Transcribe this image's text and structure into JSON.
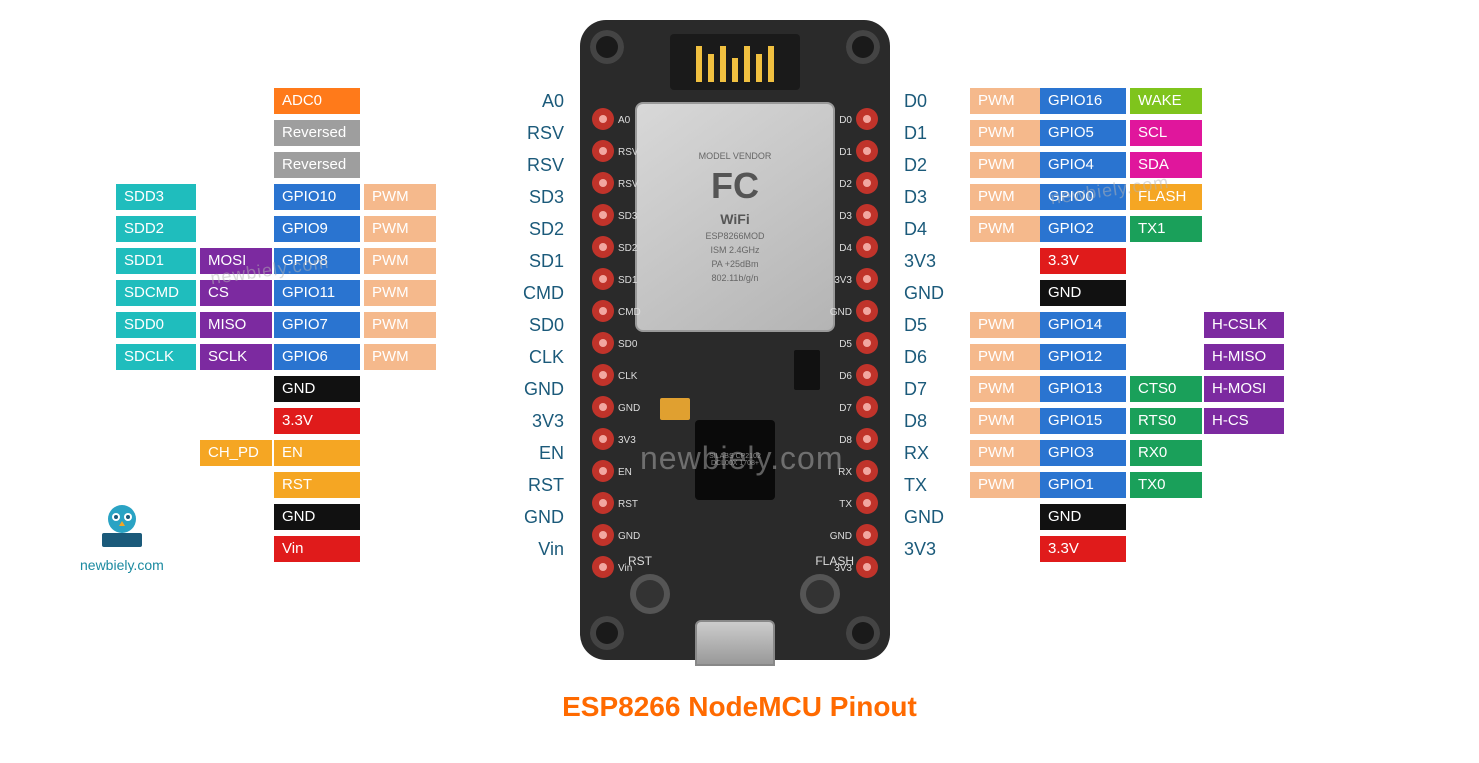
{
  "title": "ESP8266 NodeMCU Pinout",
  "watermark": "newbiely.com",
  "logo_text": "newbiely.com",
  "button_labels": {
    "rst": "RST",
    "flash": "FLASH"
  },
  "shield": {
    "fcc": "FC",
    "wifi": "WiFi",
    "line1": "MODEL VENDOR",
    "line2": "ESP8266MOD",
    "line3": "ISM 2.4GHz",
    "line4": "PA +25dBm",
    "line5": "802.11b/g/n"
  },
  "chip2": "SILABS\nCP2102\nDCL00X\n1708+",
  "colors": {
    "orange": "#ff7a1a",
    "gray": "#9e9e9e",
    "blue": "#2a74d0",
    "peach": "#f5b98c",
    "cyan": "#1fbdbd",
    "purple": "#7c2aa0",
    "black": "#111111",
    "red": "#e01b1b",
    "amber": "#f5a623",
    "green": "#1aa05a",
    "magenta": "#e0169c",
    "lime": "#7fc41c",
    "teal": "#009688",
    "navy": "#1b5a7a"
  },
  "left_pins": [
    {
      "name": "A0",
      "silk": "A0",
      "tags": [
        {
          "t": "ADC0",
          "c": "orange"
        }
      ]
    },
    {
      "name": "RSV",
      "silk": "RSV",
      "tags": [
        {
          "t": "Reversed",
          "c": "gray"
        }
      ]
    },
    {
      "name": "RSV",
      "silk": "RSV",
      "tags": [
        {
          "t": "Reversed",
          "c": "gray"
        }
      ]
    },
    {
      "name": "SD3",
      "silk": "SD3",
      "tags": [
        {
          "t": "SDD3",
          "c": "cyan"
        },
        {
          "t": "",
          "c": ""
        },
        {
          "t": "GPIO10",
          "c": "blue"
        },
        {
          "t": "PWM",
          "c": "peach"
        }
      ]
    },
    {
      "name": "SD2",
      "silk": "SD2",
      "tags": [
        {
          "t": "SDD2",
          "c": "cyan"
        },
        {
          "t": "",
          "c": ""
        },
        {
          "t": "GPIO9",
          "c": "blue"
        },
        {
          "t": "PWM",
          "c": "peach"
        }
      ]
    },
    {
      "name": "SD1",
      "silk": "SD1",
      "tags": [
        {
          "t": "SDD1",
          "c": "cyan"
        },
        {
          "t": "MOSI",
          "c": "purple"
        },
        {
          "t": "GPIO8",
          "c": "blue"
        },
        {
          "t": "PWM",
          "c": "peach"
        }
      ]
    },
    {
      "name": "CMD",
      "silk": "CMD",
      "tags": [
        {
          "t": "SDCMD",
          "c": "cyan"
        },
        {
          "t": "CS",
          "c": "purple"
        },
        {
          "t": "GPIO11",
          "c": "blue"
        },
        {
          "t": "PWM",
          "c": "peach"
        }
      ]
    },
    {
      "name": "SD0",
      "silk": "SD0",
      "tags": [
        {
          "t": "SDD0",
          "c": "cyan"
        },
        {
          "t": "MISO",
          "c": "purple"
        },
        {
          "t": "GPIO7",
          "c": "blue"
        },
        {
          "t": "PWM",
          "c": "peach"
        }
      ]
    },
    {
      "name": "CLK",
      "silk": "CLK",
      "tags": [
        {
          "t": "SDCLK",
          "c": "cyan"
        },
        {
          "t": "SCLK",
          "c": "purple"
        },
        {
          "t": "GPIO6",
          "c": "blue"
        },
        {
          "t": "PWM",
          "c": "peach"
        }
      ]
    },
    {
      "name": "GND",
      "silk": "GND",
      "tags": [
        {
          "t": "GND",
          "c": "black"
        }
      ]
    },
    {
      "name": "3V3",
      "silk": "3V3",
      "tags": [
        {
          "t": "3.3V",
          "c": "red"
        }
      ]
    },
    {
      "name": "EN",
      "silk": "EN",
      "tags": [
        {
          "t": "CH_PD",
          "c": "amber"
        },
        {
          "t": "EN",
          "c": "amber"
        }
      ]
    },
    {
      "name": "RST",
      "silk": "RST",
      "tags": [
        {
          "t": "RST",
          "c": "amber"
        }
      ]
    },
    {
      "name": "GND",
      "silk": "GND",
      "tags": [
        {
          "t": "GND",
          "c": "black"
        }
      ]
    },
    {
      "name": "Vin",
      "silk": "Vin",
      "tags": [
        {
          "t": "Vin",
          "c": "red"
        }
      ]
    }
  ],
  "right_pins": [
    {
      "name": "D0",
      "silk": "D0",
      "tags": [
        {
          "t": "PWM",
          "c": "peach"
        },
        {
          "t": "GPIO16",
          "c": "blue"
        },
        {
          "t": "WAKE",
          "c": "lime"
        }
      ]
    },
    {
      "name": "D1",
      "silk": "D1",
      "tags": [
        {
          "t": "PWM",
          "c": "peach"
        },
        {
          "t": "GPIO5",
          "c": "blue"
        },
        {
          "t": "SCL",
          "c": "magenta"
        }
      ]
    },
    {
      "name": "D2",
      "silk": "D2",
      "tags": [
        {
          "t": "PWM",
          "c": "peach"
        },
        {
          "t": "GPIO4",
          "c": "blue"
        },
        {
          "t": "SDA",
          "c": "magenta"
        }
      ]
    },
    {
      "name": "D3",
      "silk": "D3",
      "tags": [
        {
          "t": "PWM",
          "c": "peach"
        },
        {
          "t": "GPIO0",
          "c": "blue"
        },
        {
          "t": "FLASH",
          "c": "amber"
        }
      ]
    },
    {
      "name": "D4",
      "silk": "D4",
      "tags": [
        {
          "t": "PWM",
          "c": "peach"
        },
        {
          "t": "GPIO2",
          "c": "blue"
        },
        {
          "t": "TX1",
          "c": "green"
        }
      ]
    },
    {
      "name": "3V3",
      "silk": "3V3",
      "tags": [
        {
          "t": "",
          "c": ""
        },
        {
          "t": "3.3V",
          "c": "red"
        }
      ]
    },
    {
      "name": "GND",
      "silk": "GND",
      "tags": [
        {
          "t": "",
          "c": ""
        },
        {
          "t": "GND",
          "c": "black"
        }
      ]
    },
    {
      "name": "D5",
      "silk": "D5",
      "tags": [
        {
          "t": "PWM",
          "c": "peach"
        },
        {
          "t": "GPIO14",
          "c": "blue"
        },
        {
          "t": "",
          "c": ""
        },
        {
          "t": "H-CSLK",
          "c": "purple"
        }
      ]
    },
    {
      "name": "D6",
      "silk": "D6",
      "tags": [
        {
          "t": "PWM",
          "c": "peach"
        },
        {
          "t": "GPIO12",
          "c": "blue"
        },
        {
          "t": "",
          "c": ""
        },
        {
          "t": "H-MISO",
          "c": "purple"
        }
      ]
    },
    {
      "name": "D7",
      "silk": "D7",
      "tags": [
        {
          "t": "PWM",
          "c": "peach"
        },
        {
          "t": "GPIO13",
          "c": "blue"
        },
        {
          "t": "CTS0",
          "c": "green"
        },
        {
          "t": "H-MOSI",
          "c": "purple"
        }
      ]
    },
    {
      "name": "D8",
      "silk": "D8",
      "tags": [
        {
          "t": "PWM",
          "c": "peach"
        },
        {
          "t": "GPIO15",
          "c": "blue"
        },
        {
          "t": "RTS0",
          "c": "green"
        },
        {
          "t": "H-CS",
          "c": "purple"
        }
      ]
    },
    {
      "name": "RX",
      "silk": "RX",
      "tags": [
        {
          "t": "PWM",
          "c": "peach"
        },
        {
          "t": "GPIO3",
          "c": "blue"
        },
        {
          "t": "RX0",
          "c": "green"
        }
      ]
    },
    {
      "name": "TX",
      "silk": "TX",
      "tags": [
        {
          "t": "PWM",
          "c": "peach"
        },
        {
          "t": "GPIO1",
          "c": "blue"
        },
        {
          "t": "TX0",
          "c": "green"
        }
      ]
    },
    {
      "name": "GND",
      "silk": "GND",
      "tags": [
        {
          "t": "",
          "c": ""
        },
        {
          "t": "GND",
          "c": "black"
        }
      ]
    },
    {
      "name": "3V3",
      "silk": "3V3",
      "tags": [
        {
          "t": "",
          "c": ""
        },
        {
          "t": "3.3V",
          "c": "red"
        }
      ]
    }
  ]
}
